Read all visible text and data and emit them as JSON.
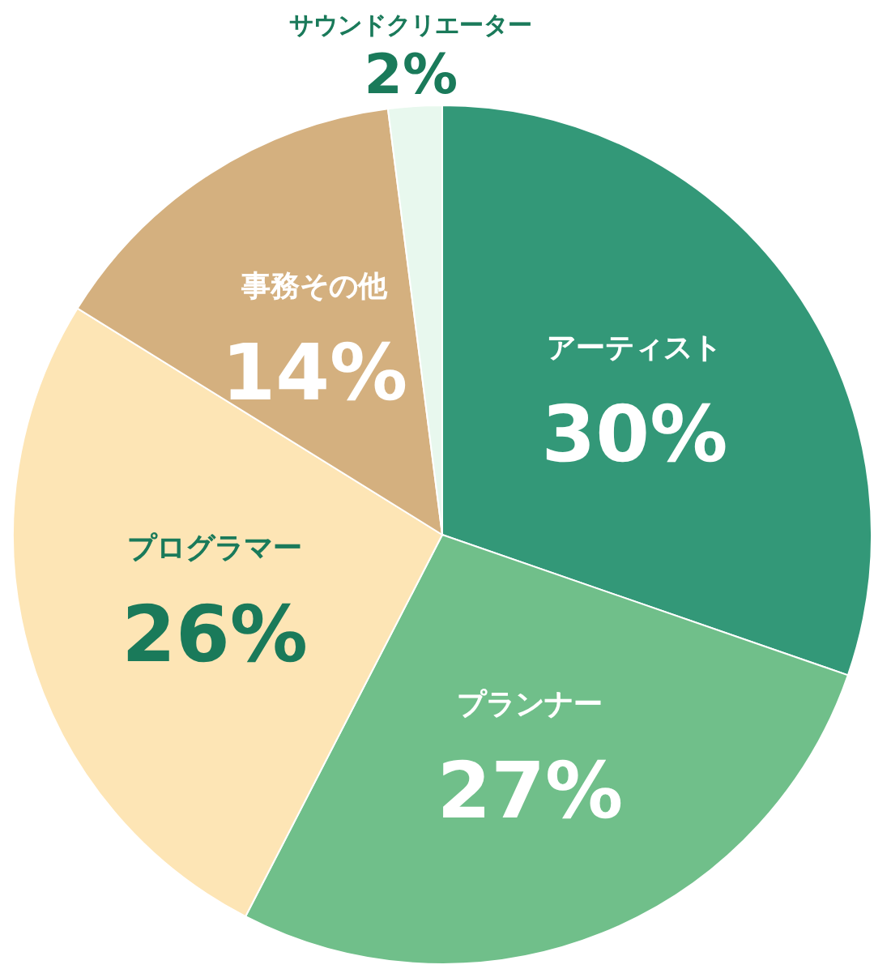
{
  "chart_data": {
    "type": "pie",
    "categories": [
      "アーティスト",
      "プランナー",
      "プログラマー",
      "事務その他",
      "サウンドクリエーター"
    ],
    "values": [
      30,
      27,
      26,
      14,
      2
    ],
    "colors": [
      "#339878",
      "#70bf8a",
      "#fde5b5",
      "#d4b07f",
      "#e8f8ee"
    ],
    "value_labels": [
      "30%",
      "27%",
      "26%",
      "14%",
      "2%"
    ]
  }
}
